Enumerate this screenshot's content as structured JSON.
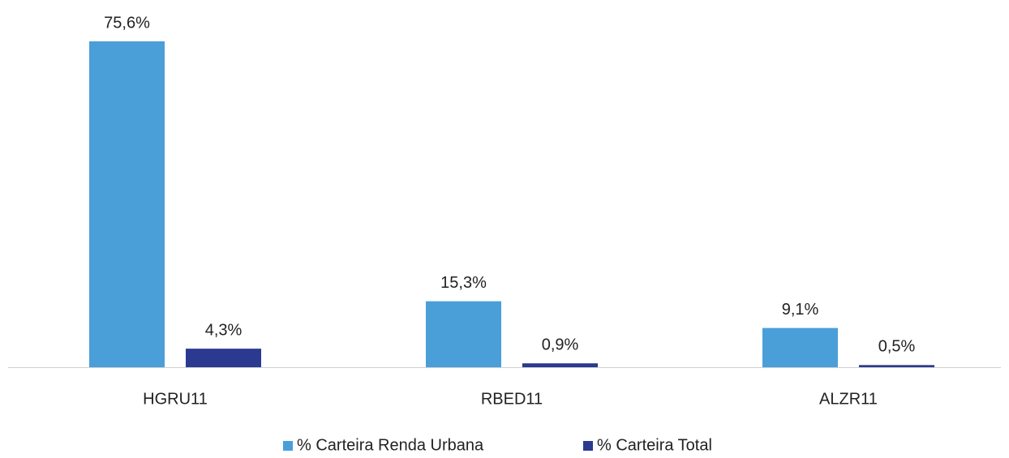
{
  "chart_data": {
    "type": "bar",
    "categories": [
      "HGRU11",
      "RBED11",
      "ALZR11"
    ],
    "series": [
      {
        "name": "% Carteira Renda Urbana",
        "color": "#4a9fd8",
        "values": [
          75.6,
          15.3,
          9.1
        ],
        "value_labels": [
          "75,6%",
          "15,3%",
          "9,1%"
        ]
      },
      {
        "name": "% Carteira Total",
        "color": "#2b3990",
        "values": [
          4.3,
          0.9,
          0.5
        ],
        "value_labels": [
          "4,3%",
          "0,9%",
          "0,5%"
        ]
      }
    ],
    "legend": "bottom"
  }
}
